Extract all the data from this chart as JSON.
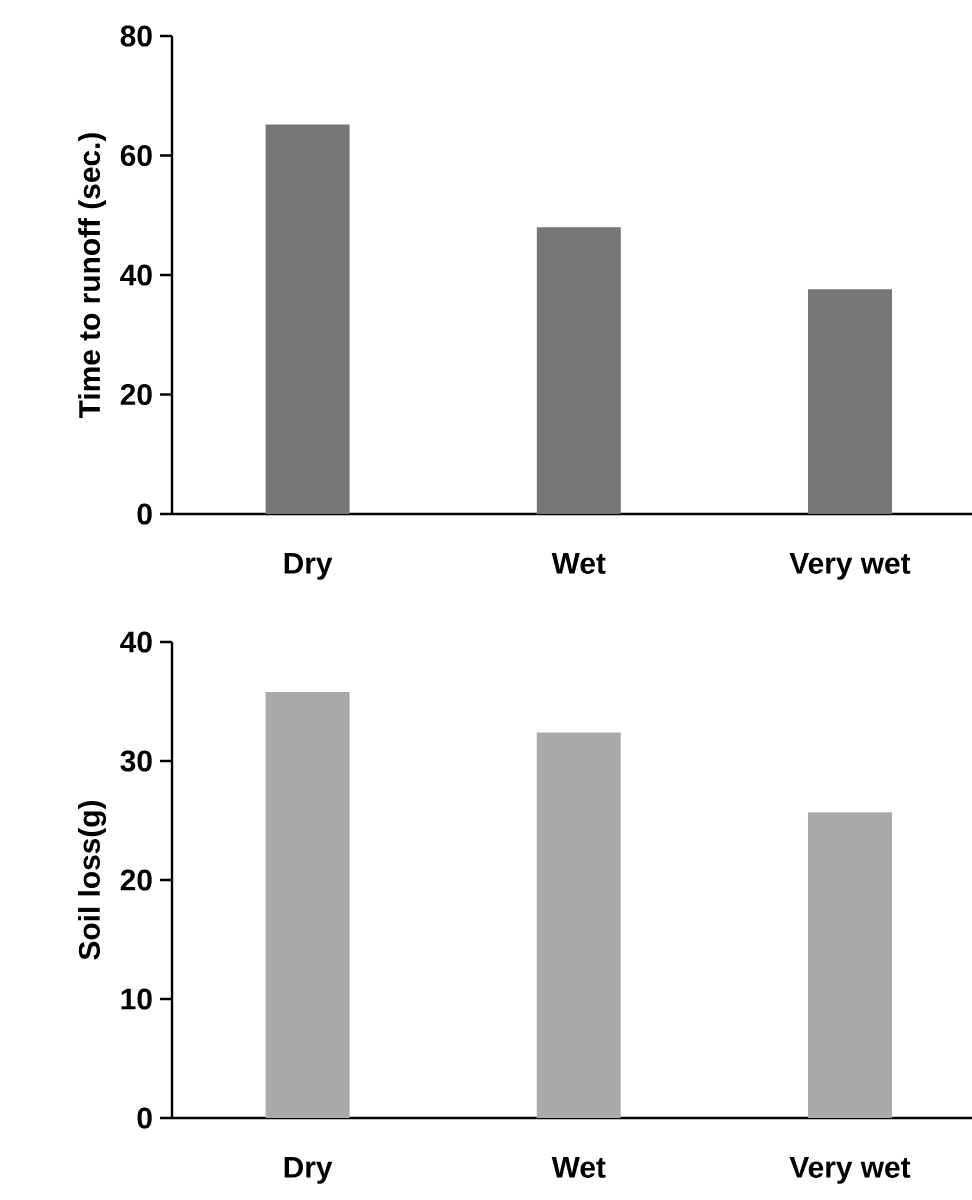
{
  "chart_data": [
    {
      "type": "bar",
      "ylabel": "Time to runoff (sec.)",
      "categories": [
        "Dry",
        "Wet",
        "Very wet"
      ],
      "values": [
        65.2,
        48.0,
        37.6
      ],
      "color": "#767676",
      "ylim": [
        0,
        80
      ],
      "yticks": [
        0,
        20,
        40,
        60,
        80
      ]
    },
    {
      "type": "bar",
      "ylabel": "Soil loss(g)",
      "categories": [
        "Dry",
        "Wet",
        "Very wet"
      ],
      "values": [
        35.8,
        32.4,
        25.7
      ],
      "color": "#a9a9a9",
      "ylim": [
        0,
        40
      ],
      "yticks": [
        0,
        10,
        20,
        30,
        40
      ]
    }
  ]
}
